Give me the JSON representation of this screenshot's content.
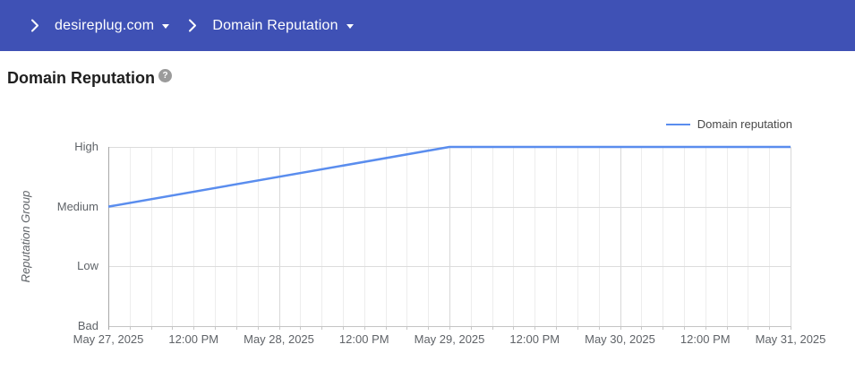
{
  "colors": {
    "header_bg": "#3F51B5",
    "series_line": "#5A8DEE"
  },
  "breadcrumb": {
    "domain_label": "desireplug.com",
    "section_label": "Domain Reputation"
  },
  "page": {
    "title": "Domain Reputation",
    "help_icon": "?"
  },
  "chart_data": {
    "type": "line",
    "title": "",
    "xlabel": "",
    "ylabel": "Reputation Group",
    "grid": true,
    "legend": {
      "label": "Domain reputation",
      "position": "top-right"
    },
    "y_categories": [
      "Bad",
      "Low",
      "Medium",
      "High"
    ],
    "x_ticks": [
      "May 27, 2025",
      "12:00 PM",
      "May 28, 2025",
      "12:00 PM",
      "May 29, 2025",
      "12:00 PM",
      "May 30, 2025",
      "12:00 PM",
      "May 31, 2025"
    ],
    "x_range_hours": 96,
    "minor_grid_hours": 3,
    "major_grid_hours": 24,
    "series": [
      {
        "name": "Domain reputation",
        "color": "#5A8DEE",
        "points": [
          {
            "x_hours": 0,
            "x_label": "May 27, 2025",
            "y": 2,
            "y_label": "Medium"
          },
          {
            "x_hours": 48,
            "x_label": "May 29, 2025",
            "y": 3,
            "y_label": "High"
          },
          {
            "x_hours": 96,
            "x_label": "May 31, 2025",
            "y": 3,
            "y_label": "High"
          }
        ]
      }
    ]
  }
}
